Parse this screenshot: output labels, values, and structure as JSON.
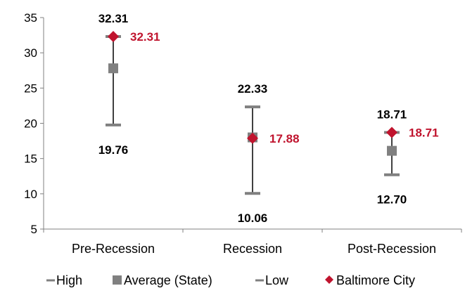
{
  "colors": {
    "range": "#404040",
    "average": "#808080",
    "baltimore": "#C0142E",
    "label": "#000000",
    "axis": "#808080"
  },
  "chart_data": {
    "type": "scatter",
    "ylim": [
      5,
      35
    ],
    "yticks": [
      5,
      10,
      15,
      20,
      25,
      30,
      35
    ],
    "ytick_labels": [
      "5",
      "10",
      "15",
      "20",
      "25",
      "30",
      "35"
    ],
    "categories": [
      "Pre-Recession",
      "Recession",
      "Post-Recession"
    ],
    "series": [
      {
        "name": "High",
        "values": [
          32.31,
          22.33,
          18.71
        ],
        "labels": [
          "32.31",
          "22.33",
          "18.71"
        ]
      },
      {
        "name": "Average (State)",
        "values": [
          27.8,
          18.0,
          16.1
        ]
      },
      {
        "name": "Low",
        "values": [
          19.76,
          10.06,
          12.7
        ],
        "labels": [
          "19.76",
          "10.06",
          "12.70"
        ]
      },
      {
        "name": "Baltimore City",
        "values": [
          32.31,
          17.88,
          18.71
        ],
        "labels": [
          "32.31",
          "17.88",
          "18.71"
        ]
      }
    ],
    "legend_position": "bottom",
    "grid": false
  }
}
